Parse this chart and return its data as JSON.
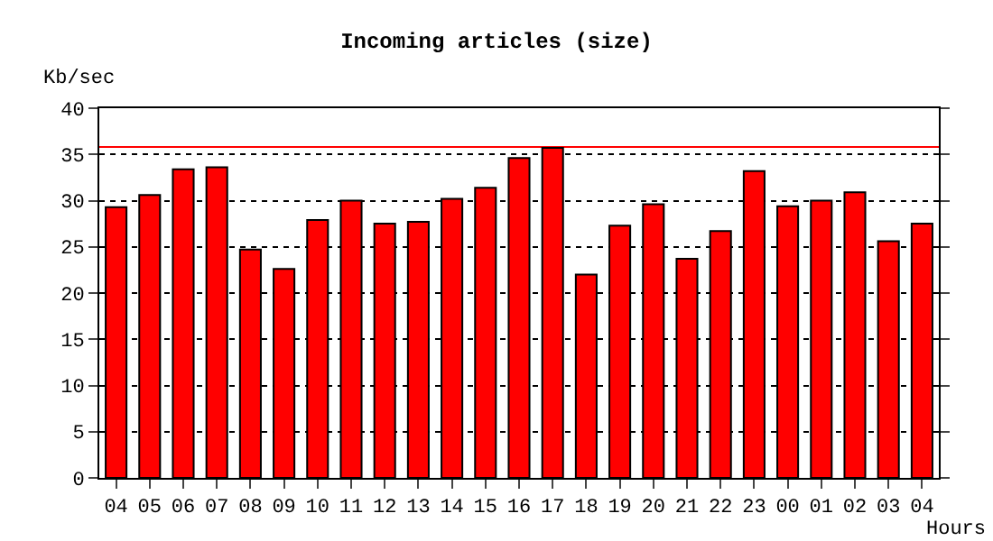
{
  "chart_data": {
    "type": "bar",
    "title": "Incoming articles (size)",
    "ylabel": "Kb/sec",
    "xlabel": "Hours",
    "categories": [
      "04",
      "05",
      "06",
      "07",
      "08",
      "09",
      "10",
      "11",
      "12",
      "13",
      "14",
      "15",
      "16",
      "17",
      "18",
      "19",
      "20",
      "21",
      "22",
      "23",
      "00",
      "01",
      "02",
      "03",
      "04"
    ],
    "values": [
      29.3,
      30.6,
      33.4,
      33.6,
      24.7,
      22.6,
      27.9,
      30.0,
      27.5,
      27.7,
      30.2,
      31.4,
      34.6,
      35.7,
      22.0,
      27.3,
      29.6,
      23.7,
      26.7,
      33.2,
      29.4,
      30.0,
      30.9,
      25.6,
      27.5
    ],
    "color": "#ff0000",
    "ylim": [
      0,
      40
    ],
    "yticks": [
      0,
      5,
      10,
      15,
      20,
      25,
      30,
      35,
      40
    ],
    "grid": "y",
    "ref_lines": [
      {
        "axis": "y",
        "value": 35.8,
        "color": "#ff0000",
        "line_style": "solid"
      }
    ]
  }
}
